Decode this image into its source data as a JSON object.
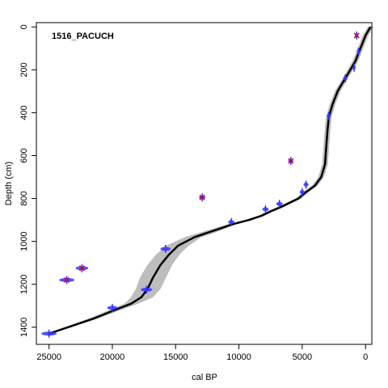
{
  "chart_data": {
    "type": "line",
    "title": "1516_PACUCH",
    "xlabel": "cal BP",
    "ylabel": "Depth (cm)",
    "xlim": [
      26000,
      -500
    ],
    "ylim": [
      1480,
      -20
    ],
    "x_reversed": true,
    "y_reversed": true,
    "x_ticks": [
      25000,
      20000,
      15000,
      10000,
      5000,
      0
    ],
    "y_ticks": [
      0,
      200,
      400,
      600,
      800,
      1000,
      1200,
      1400
    ],
    "grid": false,
    "legend": "none",
    "colors": {
      "model_line": "#000000",
      "envelope": "#bdbdbd",
      "accepted_date": "#3333ff",
      "outlier_marker": "#cc0033"
    },
    "series": [
      {
        "kind": "age_model",
        "x": [
          -400,
          0,
          400,
          800,
          1200,
          1700,
          2200,
          2600,
          2900,
          3000,
          3100,
          3200,
          3500,
          4000,
          4700,
          5300,
          6000,
          6700,
          7500,
          8200,
          9200,
          10500,
          12000,
          13500,
          14800,
          15500,
          16200,
          16800,
          17200,
          17700,
          18500,
          19800,
          21500,
          23500,
          25000
        ],
        "y": [
          0,
          40,
          100,
          160,
          200,
          250,
          300,
          360,
          420,
          480,
          560,
          640,
          700,
          740,
          770,
          800,
          820,
          840,
          860,
          880,
          900,
          920,
          950,
          980,
          1020,
          1060,
          1110,
          1170,
          1220,
          1260,
          1290,
          1320,
          1360,
          1400,
          1430
        ]
      },
      {
        "kind": "envelope_min",
        "x": [
          -600,
          -200,
          200,
          600,
          1000,
          1500,
          2000,
          2400,
          2700,
          2800,
          2900,
          3000,
          3300,
          3800,
          4500,
          5100,
          5800,
          6500,
          7300,
          8000,
          9000,
          10300,
          11500,
          13000,
          14000,
          14700,
          15300,
          15800,
          16200,
          16800,
          18000,
          19400,
          21200,
          23300,
          25000
        ],
        "y": [
          0,
          40,
          100,
          160,
          200,
          250,
          300,
          360,
          420,
          480,
          560,
          640,
          700,
          740,
          770,
          800,
          820,
          840,
          860,
          880,
          900,
          920,
          950,
          980,
          1020,
          1060,
          1110,
          1170,
          1220,
          1260,
          1290,
          1320,
          1360,
          1400,
          1430
        ]
      },
      {
        "kind": "envelope_max",
        "x": [
          -200,
          200,
          600,
          1000,
          1400,
          1900,
          2400,
          2800,
          3100,
          3200,
          3300,
          3400,
          3700,
          4200,
          4900,
          5500,
          6200,
          6900,
          7700,
          8400,
          9400,
          10800,
          12500,
          14200,
          15700,
          16500,
          17200,
          17800,
          18100,
          18500,
          19000,
          20200,
          21800,
          23700,
          25100
        ],
        "y": [
          0,
          40,
          100,
          160,
          200,
          250,
          300,
          360,
          420,
          480,
          560,
          640,
          700,
          740,
          770,
          800,
          820,
          840,
          860,
          880,
          900,
          920,
          950,
          980,
          1020,
          1060,
          1110,
          1170,
          1220,
          1260,
          1290,
          1320,
          1360,
          1400,
          1430
        ]
      },
      {
        "kind": "dates",
        "points": [
          {
            "age": 700,
            "depth": 40,
            "err": 100,
            "outlier": true
          },
          {
            "age": 550,
            "depth": 115,
            "err": 100,
            "outlier": false
          },
          {
            "age": 900,
            "depth": 190,
            "err": 120,
            "outlier": false
          },
          {
            "age": 1600,
            "depth": 240,
            "err": 150,
            "outlier": false
          },
          {
            "age": 2900,
            "depth": 415,
            "err": 150,
            "outlier": false
          },
          {
            "age": 5900,
            "depth": 625,
            "err": 200,
            "outlier": true
          },
          {
            "age": 4700,
            "depth": 735,
            "err": 200,
            "outlier": false
          },
          {
            "age": 5000,
            "depth": 770,
            "err": 200,
            "outlier": false
          },
          {
            "age": 12900,
            "depth": 795,
            "err": 250,
            "outlier": true
          },
          {
            "age": 6800,
            "depth": 825,
            "err": 250,
            "outlier": false
          },
          {
            "age": 7900,
            "depth": 850,
            "err": 250,
            "outlier": false
          },
          {
            "age": 10600,
            "depth": 910,
            "err": 250,
            "outlier": false
          },
          {
            "age": 15800,
            "depth": 1035,
            "err": 400,
            "outlier": false
          },
          {
            "age": 22400,
            "depth": 1125,
            "err": 500,
            "outlier": true
          },
          {
            "age": 23600,
            "depth": 1180,
            "err": 600,
            "outlier": true
          },
          {
            "age": 17300,
            "depth": 1225,
            "err": 450,
            "outlier": false
          },
          {
            "age": 20000,
            "depth": 1310,
            "err": 400,
            "outlier": false
          },
          {
            "age": 25000,
            "depth": 1430,
            "err": 600,
            "outlier": false
          }
        ]
      }
    ]
  }
}
